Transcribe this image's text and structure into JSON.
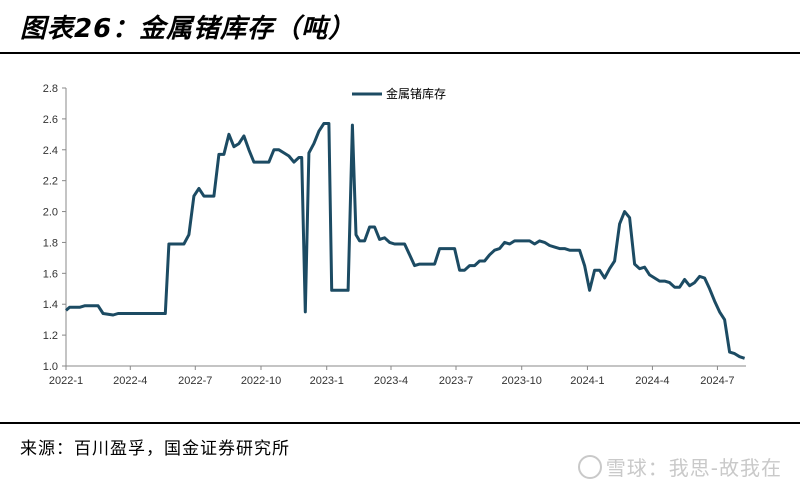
{
  "header": {
    "title": "图表26：金属锗库存（吨）"
  },
  "footer": {
    "source": "来源：百川盈孚，国金证券研究所"
  },
  "watermark": {
    "text": "雪球：我思-故我在"
  },
  "colors": {
    "series": "#1c4b63",
    "axis": "#888888"
  },
  "chart_data": {
    "type": "line",
    "title": "",
    "xlabel": "",
    "ylabel": "",
    "ylim": [
      1.0,
      2.8
    ],
    "yticks": [
      "1.0",
      "1.2",
      "1.4",
      "1.6",
      "1.8",
      "2.0",
      "2.2",
      "2.4",
      "2.6",
      "2.8"
    ],
    "xtick_labels": [
      "2022-1",
      "2022-4",
      "2022-7",
      "2022-10",
      "2023-1",
      "2023-4",
      "2023-7",
      "2023-10",
      "2024-1",
      "2024-4",
      "2024-7"
    ],
    "xlim": [
      "2022-01-01",
      "2024-08-10"
    ],
    "grid": false,
    "legend": "top-center",
    "series": [
      {
        "name": "金属锗库存",
        "points": [
          [
            "2022-01-01",
            1.36
          ],
          [
            "2022-01-06",
            1.38
          ],
          [
            "2022-01-20",
            1.38
          ],
          [
            "2022-01-27",
            1.39
          ],
          [
            "2022-02-15",
            1.39
          ],
          [
            "2022-02-22",
            1.34
          ],
          [
            "2022-03-08",
            1.33
          ],
          [
            "2022-03-15",
            1.34
          ],
          [
            "2022-04-15",
            1.34
          ],
          [
            "2022-05-15",
            1.34
          ],
          [
            "2022-05-20",
            1.34
          ],
          [
            "2022-05-25",
            1.79
          ],
          [
            "2022-06-15",
            1.79
          ],
          [
            "2022-06-22",
            1.85
          ],
          [
            "2022-06-29",
            2.1
          ],
          [
            "2022-07-06",
            2.15
          ],
          [
            "2022-07-13",
            2.1
          ],
          [
            "2022-07-27",
            2.1
          ],
          [
            "2022-08-03",
            2.37
          ],
          [
            "2022-08-10",
            2.37
          ],
          [
            "2022-08-17",
            2.5
          ],
          [
            "2022-08-24",
            2.42
          ],
          [
            "2022-08-31",
            2.44
          ],
          [
            "2022-09-07",
            2.49
          ],
          [
            "2022-09-14",
            2.4
          ],
          [
            "2022-09-21",
            2.32
          ],
          [
            "2022-09-28",
            2.32
          ],
          [
            "2022-10-12",
            2.32
          ],
          [
            "2022-10-19",
            2.4
          ],
          [
            "2022-10-26",
            2.4
          ],
          [
            "2022-11-02",
            2.38
          ],
          [
            "2022-11-09",
            2.36
          ],
          [
            "2022-11-16",
            2.32
          ],
          [
            "2022-11-23",
            2.35
          ],
          [
            "2022-11-27",
            2.35
          ],
          [
            "2022-12-02",
            1.35
          ],
          [
            "2022-12-07",
            2.38
          ],
          [
            "2022-12-14",
            2.44
          ],
          [
            "2022-12-21",
            2.52
          ],
          [
            "2022-12-28",
            2.57
          ],
          [
            "2023-01-04",
            2.57
          ],
          [
            "2023-01-08",
            1.49
          ],
          [
            "2023-01-20",
            1.49
          ],
          [
            "2023-01-31",
            1.49
          ],
          [
            "2023-02-06",
            2.56
          ],
          [
            "2023-02-11",
            1.85
          ],
          [
            "2023-02-16",
            1.81
          ],
          [
            "2023-02-23",
            1.81
          ],
          [
            "2023-03-02",
            1.9
          ],
          [
            "2023-03-09",
            1.9
          ],
          [
            "2023-03-16",
            1.82
          ],
          [
            "2023-03-23",
            1.83
          ],
          [
            "2023-03-30",
            1.8
          ],
          [
            "2023-04-06",
            1.79
          ],
          [
            "2023-04-20",
            1.79
          ],
          [
            "2023-04-27",
            1.72
          ],
          [
            "2023-05-04",
            1.65
          ],
          [
            "2023-05-11",
            1.66
          ],
          [
            "2023-05-25",
            1.66
          ],
          [
            "2023-06-01",
            1.66
          ],
          [
            "2023-06-08",
            1.76
          ],
          [
            "2023-06-15",
            1.76
          ],
          [
            "2023-06-29",
            1.76
          ],
          [
            "2023-07-06",
            1.62
          ],
          [
            "2023-07-13",
            1.62
          ],
          [
            "2023-07-20",
            1.65
          ],
          [
            "2023-07-27",
            1.65
          ],
          [
            "2023-08-03",
            1.68
          ],
          [
            "2023-08-10",
            1.68
          ],
          [
            "2023-08-17",
            1.72
          ],
          [
            "2023-08-24",
            1.75
          ],
          [
            "2023-08-31",
            1.76
          ],
          [
            "2023-09-07",
            1.8
          ],
          [
            "2023-09-14",
            1.79
          ],
          [
            "2023-09-21",
            1.81
          ],
          [
            "2023-09-28",
            1.81
          ],
          [
            "2023-10-05",
            1.81
          ],
          [
            "2023-10-12",
            1.81
          ],
          [
            "2023-10-19",
            1.79
          ],
          [
            "2023-10-26",
            1.81
          ],
          [
            "2023-11-02",
            1.8
          ],
          [
            "2023-11-09",
            1.78
          ],
          [
            "2023-11-16",
            1.77
          ],
          [
            "2023-11-23",
            1.76
          ],
          [
            "2023-11-30",
            1.76
          ],
          [
            "2023-12-07",
            1.75
          ],
          [
            "2023-12-21",
            1.75
          ],
          [
            "2023-12-28",
            1.65
          ],
          [
            "2024-01-04",
            1.49
          ],
          [
            "2024-01-11",
            1.62
          ],
          [
            "2024-01-18",
            1.62
          ],
          [
            "2024-01-25",
            1.57
          ],
          [
            "2024-02-01",
            1.63
          ],
          [
            "2024-02-08",
            1.68
          ],
          [
            "2024-02-15",
            1.92
          ],
          [
            "2024-02-22",
            2.0
          ],
          [
            "2024-02-29",
            1.96
          ],
          [
            "2024-03-07",
            1.66
          ],
          [
            "2024-03-14",
            1.63
          ],
          [
            "2024-03-21",
            1.64
          ],
          [
            "2024-03-28",
            1.59
          ],
          [
            "2024-04-04",
            1.57
          ],
          [
            "2024-04-11",
            1.55
          ],
          [
            "2024-04-18",
            1.55
          ],
          [
            "2024-04-25",
            1.54
          ],
          [
            "2024-05-02",
            1.51
          ],
          [
            "2024-05-09",
            1.51
          ],
          [
            "2024-05-16",
            1.56
          ],
          [
            "2024-05-23",
            1.52
          ],
          [
            "2024-05-30",
            1.54
          ],
          [
            "2024-06-06",
            1.58
          ],
          [
            "2024-06-13",
            1.57
          ],
          [
            "2024-06-20",
            1.5
          ],
          [
            "2024-06-27",
            1.42
          ],
          [
            "2024-07-04",
            1.35
          ],
          [
            "2024-07-11",
            1.3
          ],
          [
            "2024-07-18",
            1.09
          ],
          [
            "2024-07-25",
            1.08
          ],
          [
            "2024-08-01",
            1.06
          ],
          [
            "2024-08-08",
            1.05
          ]
        ]
      }
    ]
  }
}
